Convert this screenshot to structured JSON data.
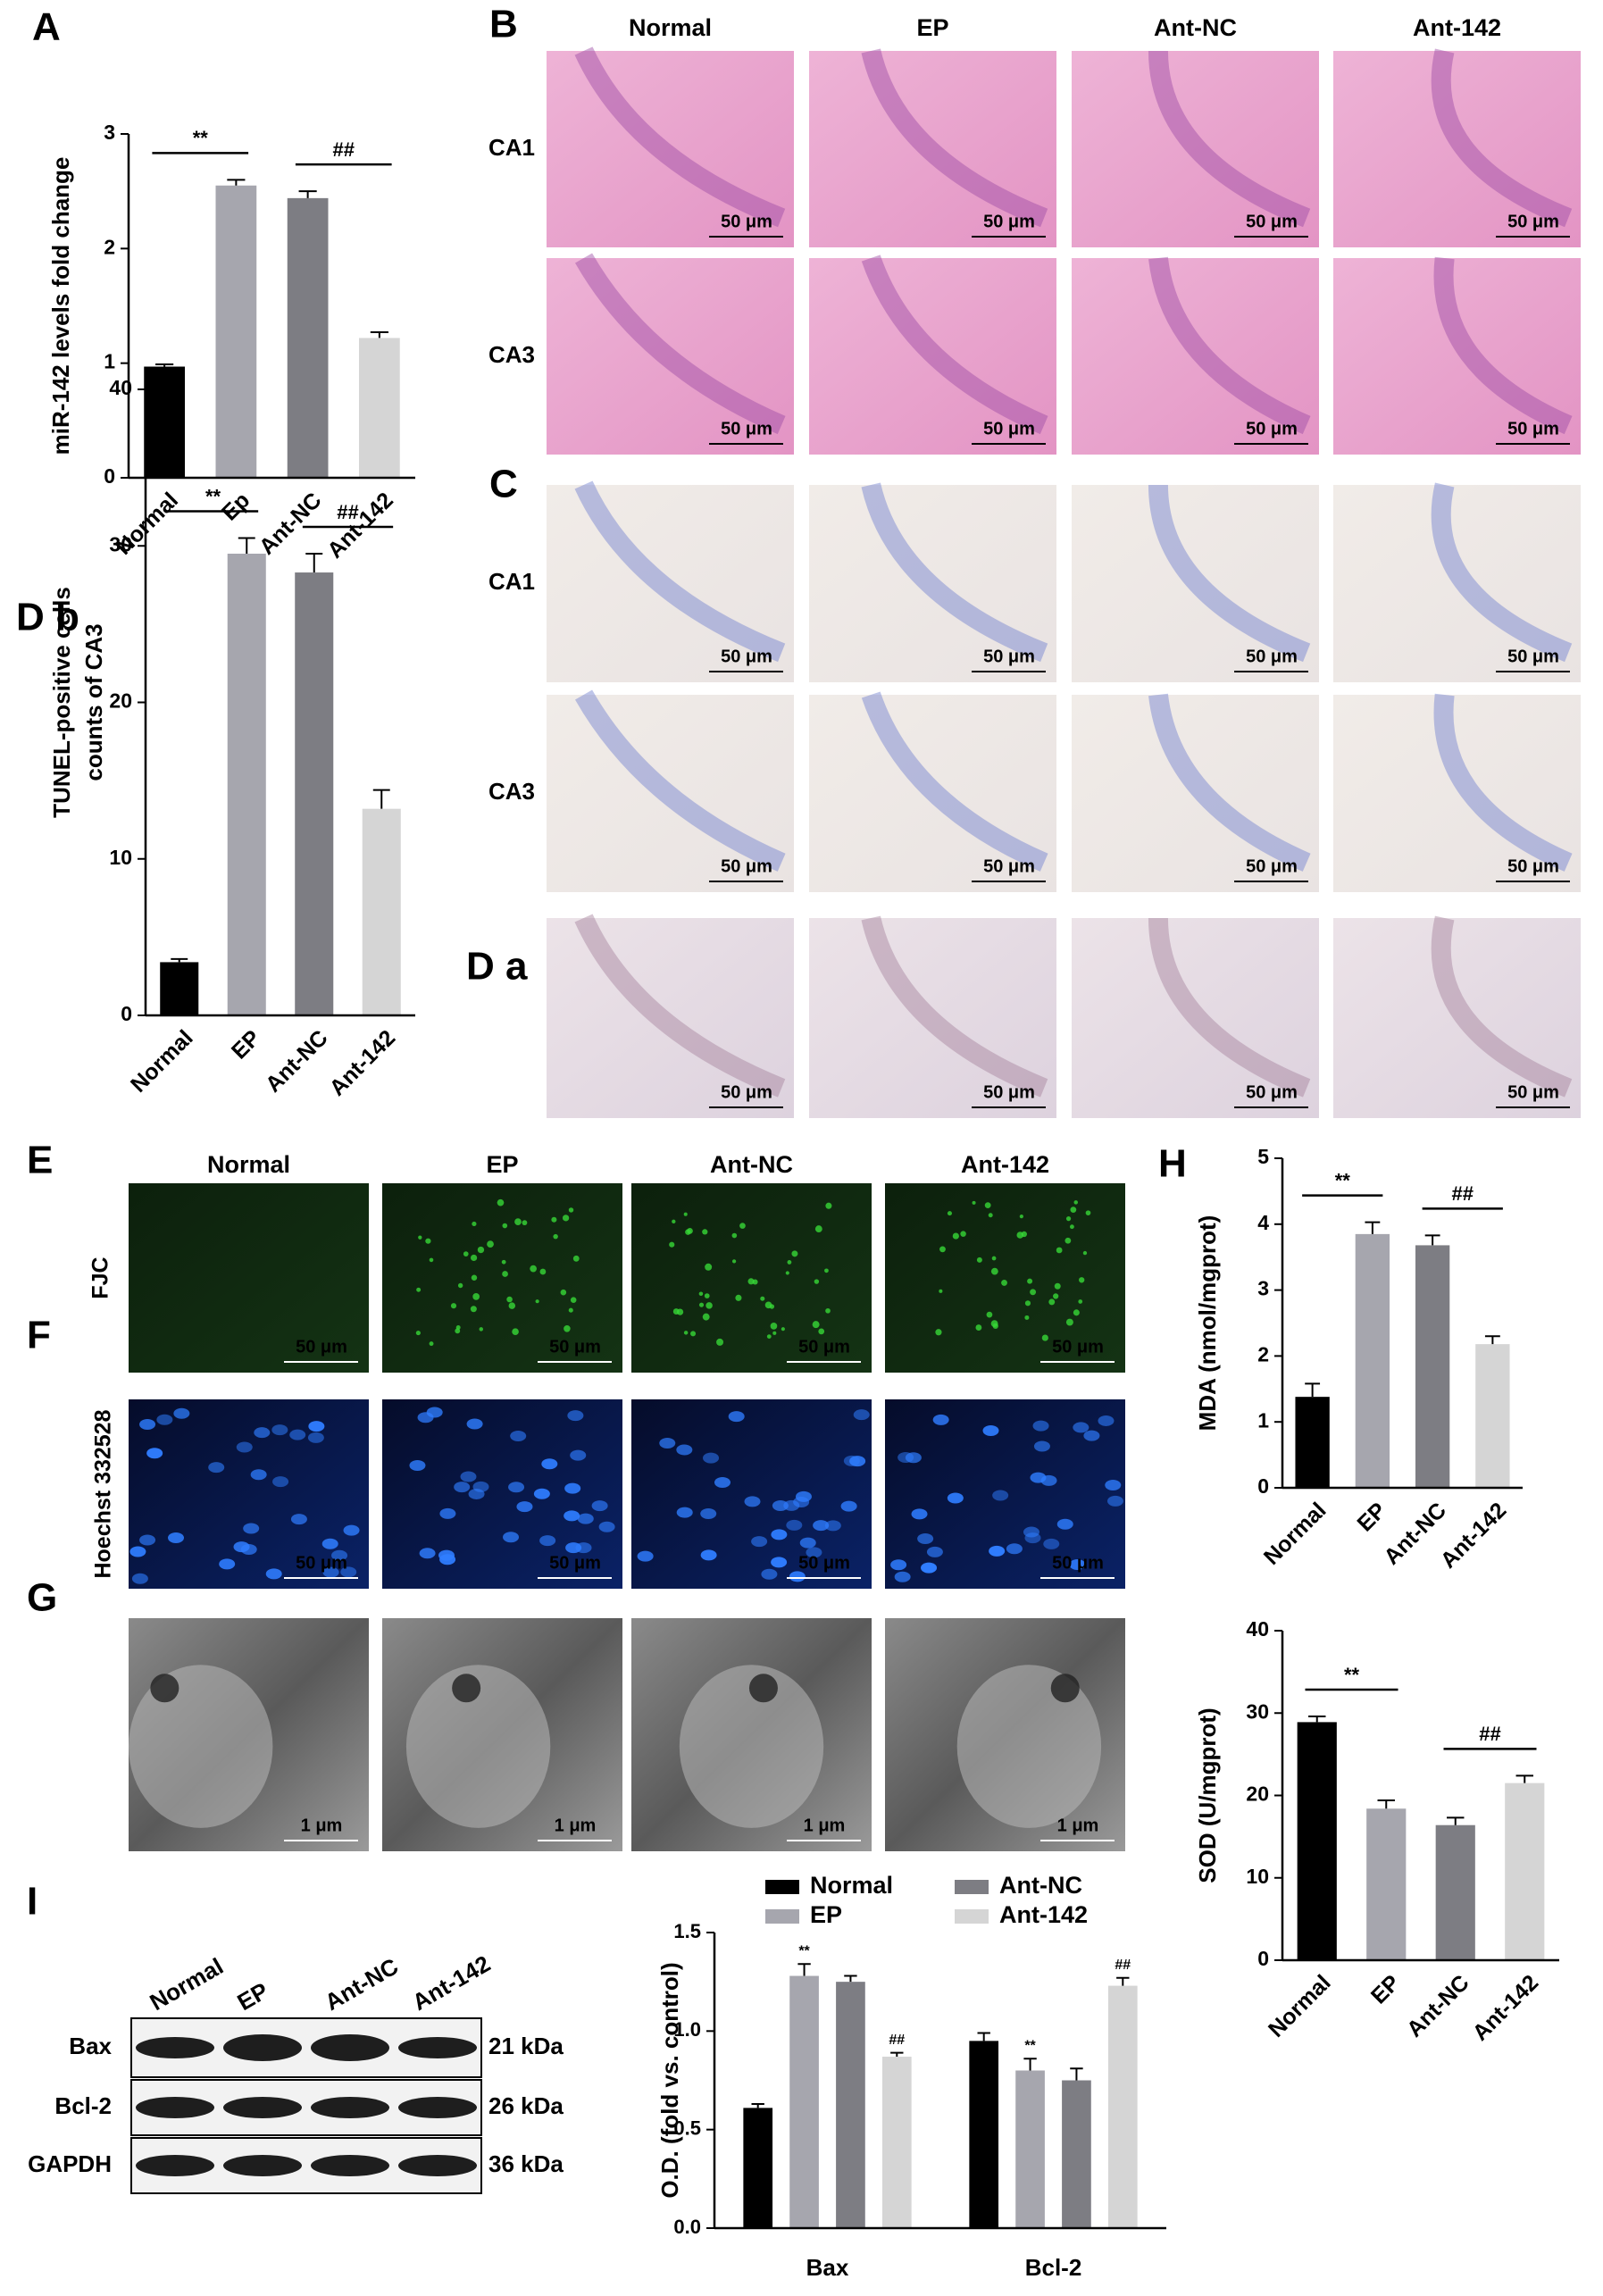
{
  "figure_labels": {
    "A": "A",
    "B": "B",
    "C": "C",
    "Da": "D a",
    "Db": "D b",
    "E": "E",
    "F": "F",
    "G": "G",
    "H": "H",
    "I": "I"
  },
  "histology": {
    "groups": [
      "Normal",
      "EP",
      "Ant-NC",
      "Ant-142"
    ],
    "regions": [
      "CA1",
      "CA3"
    ],
    "scale_bar": "50 μm"
  },
  "fluorescence": {
    "groups": [
      "Normal",
      "EP",
      "Ant-NC",
      "Ant-142"
    ],
    "stains": [
      "FJC",
      "Hoechst 332528"
    ],
    "scale_bar": "50 μm"
  },
  "tem": {
    "scale_bar": "1 μm"
  },
  "western_blot": {
    "groups": [
      "Normal",
      "EP",
      "Ant-NC",
      "Ant-142"
    ],
    "proteins": [
      {
        "name": "Bax",
        "size": "21 kDa"
      },
      {
        "name": "Bcl-2",
        "size": "26 kDa"
      },
      {
        "name": "GAPDH",
        "size": "36 kDa"
      }
    ]
  },
  "chart_data": [
    {
      "type": "bar",
      "ylabel": [
        "miR-142 levels fold change"
      ],
      "categories": [
        "Normal",
        "Ep",
        "Ant-NC",
        "Ant-142"
      ],
      "values": [
        0.97,
        2.55,
        2.44,
        1.22
      ],
      "errors": [
        0.02,
        0.05,
        0.06,
        0.05
      ],
      "colors": [
        "#000000",
        "#a6a6ae",
        "#7d7d83",
        "#d5d5d5"
      ],
      "ylim": [
        0,
        3
      ],
      "yticks": [
        0,
        1,
        2,
        3
      ],
      "annotations": [
        "**",
        "##"
      ]
    },
    {
      "type": "bar",
      "ylabel": [
        "TUNEL-positive cells",
        "counts of  CA3"
      ],
      "categories": [
        "Normal",
        "EP",
        "Ant-NC",
        "Ant-142"
      ],
      "values": [
        3.4,
        29.5,
        28.3,
        13.2
      ],
      "errors": [
        0.2,
        1.0,
        1.2,
        1.2
      ],
      "colors": [
        "#000000",
        "#a6a6ae",
        "#7d7d83",
        "#d5d5d5"
      ],
      "ylim": [
        0,
        40
      ],
      "yticks": [
        0,
        10,
        20,
        30,
        40
      ],
      "annotations": [
        "**",
        "##"
      ]
    },
    {
      "type": "bar",
      "ylabel": [
        "MDA (nmol/mgprot)"
      ],
      "categories": [
        "Normal",
        "EP",
        "Ant-NC",
        "Ant-142"
      ],
      "values": [
        1.38,
        3.85,
        3.68,
        2.18
      ],
      "errors": [
        0.2,
        0.18,
        0.15,
        0.12
      ],
      "colors": [
        "#000000",
        "#a6a6ae",
        "#7d7d83",
        "#d5d5d5"
      ],
      "ylim": [
        0,
        5
      ],
      "yticks": [
        0,
        1,
        2,
        3,
        4,
        5
      ],
      "annotations": [
        "**",
        "##"
      ]
    },
    {
      "type": "bar",
      "ylabel": [
        "SOD (U/mgprot)"
      ],
      "categories": [
        "Normal",
        "EP",
        "Ant-NC",
        "Ant-142"
      ],
      "values": [
        28.9,
        18.4,
        16.4,
        21.5
      ],
      "errors": [
        0.7,
        1.0,
        0.9,
        0.9
      ],
      "colors": [
        "#000000",
        "#a6a6ae",
        "#7d7d83",
        "#d5d5d5"
      ],
      "ylim": [
        0,
        40
      ],
      "yticks": [
        0,
        10,
        20,
        30,
        40
      ],
      "annotations": [
        "**",
        "##"
      ]
    },
    {
      "type": "bar",
      "ylabel": [
        "O.D. (fold vs. control)"
      ],
      "categories": [
        "Bax",
        "Bcl-2"
      ],
      "legend": "top",
      "series": [
        {
          "name": "Normal",
          "color": "#000000",
          "values": [
            0.61,
            0.95
          ],
          "errors": [
            0.02,
            0.04
          ]
        },
        {
          "name": "EP",
          "color": "#a6a6ae",
          "values": [
            1.28,
            0.8
          ],
          "errors": [
            0.06,
            0.06
          ],
          "marks": [
            "**",
            "**"
          ]
        },
        {
          "name": "Ant-NC",
          "color": "#7d7d83",
          "values": [
            1.25,
            0.75
          ],
          "errors": [
            0.03,
            0.06
          ]
        },
        {
          "name": "Ant-142",
          "color": "#d5d5d5",
          "values": [
            0.87,
            1.23
          ],
          "errors": [
            0.02,
            0.04
          ],
          "marks": [
            "##",
            "##"
          ]
        }
      ],
      "ylim": [
        0,
        1.5
      ],
      "yticks": [
        {
          "value": 0,
          "label": "0.0"
        },
        {
          "value": 0.5,
          "label": "0.5"
        },
        {
          "value": 1,
          "label": "1.0"
        },
        {
          "value": 1.5,
          "label": "1.5"
        }
      ]
    }
  ]
}
